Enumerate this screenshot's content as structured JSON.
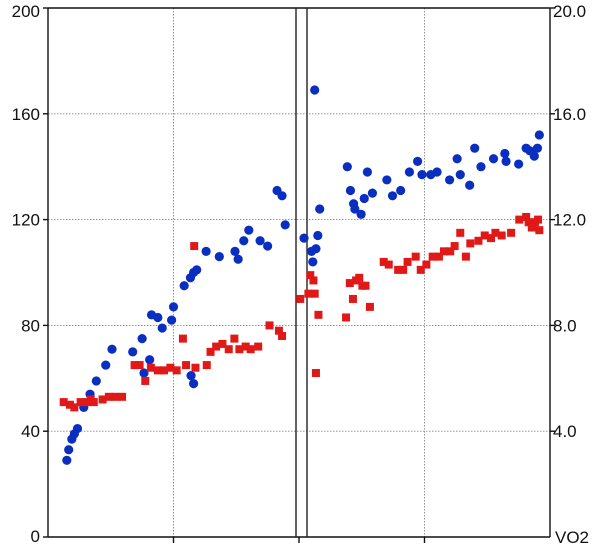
{
  "chart_data": {
    "type": "scatter",
    "title": "",
    "xlabel": "",
    "y_left": {
      "ylim": [
        0,
        200
      ],
      "ticks": [
        "0",
        "40",
        "80",
        "120",
        "160",
        "200"
      ]
    },
    "y_right": {
      "ylim": [
        0,
        20
      ],
      "ticks": [
        "4.0",
        "8.0",
        "12.0",
        "16.0",
        "20.0"
      ],
      "label": "VO2"
    },
    "grid": true,
    "series": [
      {
        "axis": "left",
        "marker": "circle",
        "color": "#0a2fc0",
        "points": [
          [
            3,
            29
          ],
          [
            3.3,
            33
          ],
          [
            3.8,
            37
          ],
          [
            4.2,
            39
          ],
          [
            4.7,
            41
          ],
          [
            5.7,
            49
          ],
          [
            6.7,
            54
          ],
          [
            7.7,
            59
          ],
          [
            9.2,
            65
          ],
          [
            10.2,
            71
          ],
          [
            13.5,
            70
          ],
          [
            15,
            75
          ],
          [
            15.3,
            62
          ],
          [
            16.2,
            67
          ],
          [
            16.5,
            84
          ],
          [
            17.5,
            83
          ],
          [
            18.2,
            79
          ],
          [
            19.7,
            82
          ],
          [
            20,
            87
          ],
          [
            21.7,
            95
          ],
          [
            22.8,
            61
          ],
          [
            23.2,
            58
          ],
          [
            22.7,
            98
          ],
          [
            23.2,
            100
          ],
          [
            23.7,
            101
          ],
          [
            25.2,
            108
          ],
          [
            27.3,
            106
          ],
          [
            29.8,
            108
          ],
          [
            30.3,
            105
          ],
          [
            31.2,
            112
          ],
          [
            32,
            116
          ],
          [
            33.8,
            112
          ],
          [
            35,
            110
          ],
          [
            36.5,
            131
          ],
          [
            37.3,
            129
          ],
          [
            37.8,
            118
          ],
          [
            40.8,
            113
          ],
          [
            42,
            108
          ],
          [
            42.2,
            104
          ],
          [
            42.7,
            109
          ],
          [
            43,
            114
          ],
          [
            42.5,
            169
          ],
          [
            43.3,
            124
          ],
          [
            47.7,
            140
          ],
          [
            48.2,
            131
          ],
          [
            48.7,
            126
          ],
          [
            48.9,
            124
          ],
          [
            49.9,
            122
          ],
          [
            50.4,
            128
          ],
          [
            50.9,
            138
          ],
          [
            51.7,
            130
          ],
          [
            54,
            135
          ],
          [
            54.9,
            129
          ],
          [
            56.2,
            131
          ],
          [
            57.6,
            138
          ],
          [
            58.9,
            142
          ],
          [
            59.6,
            137
          ],
          [
            61,
            137
          ],
          [
            62,
            138
          ],
          [
            64,
            135
          ],
          [
            65.2,
            143
          ],
          [
            65.7,
            137
          ],
          [
            67.2,
            133
          ],
          [
            68,
            147
          ],
          [
            69,
            140
          ],
          [
            71,
            143
          ],
          [
            72.8,
            145
          ],
          [
            73,
            142
          ],
          [
            75,
            141
          ],
          [
            76.2,
            147
          ],
          [
            76.8,
            146
          ],
          [
            77.5,
            144
          ],
          [
            78,
            147
          ],
          [
            78.3,
            152
          ]
        ]
      },
      {
        "axis": "right",
        "marker": "square",
        "color": "#e01818",
        "points": [
          [
            2.5,
            5.1
          ],
          [
            3.5,
            5.0
          ],
          [
            4.2,
            4.9
          ],
          [
            5.2,
            5.1
          ],
          [
            6.2,
            5.1
          ],
          [
            6.8,
            5.2
          ],
          [
            7.3,
            5.1
          ],
          [
            8.7,
            5.2
          ],
          [
            9.7,
            5.3
          ],
          [
            10.7,
            5.3
          ],
          [
            11.8,
            5.3
          ],
          [
            13.8,
            6.5
          ],
          [
            14.6,
            6.5
          ],
          [
            15.5,
            5.9
          ],
          [
            16.4,
            6.4
          ],
          [
            17.5,
            6.3
          ],
          [
            18.5,
            6.3
          ],
          [
            19.5,
            6.4
          ],
          [
            20.5,
            6.3
          ],
          [
            21.5,
            7.5
          ],
          [
            23.3,
            11.0
          ],
          [
            22,
            6.5
          ],
          [
            23.5,
            6.4
          ],
          [
            25.3,
            6.5
          ],
          [
            25.9,
            7.0
          ],
          [
            26.8,
            7.2
          ],
          [
            27.8,
            7.3
          ],
          [
            28.8,
            7.1
          ],
          [
            29.7,
            7.5
          ],
          [
            30.5,
            7.1
          ],
          [
            31.5,
            7.2
          ],
          [
            32.3,
            7.1
          ],
          [
            33.5,
            7.2
          ],
          [
            35.3,
            8.0
          ],
          [
            36.8,
            7.8
          ],
          [
            37.3,
            7.6
          ],
          [
            40.2,
            9.0
          ],
          [
            41.5,
            9.2
          ],
          [
            41.8,
            9.9
          ],
          [
            42.3,
            9.7
          ],
          [
            42.5,
            9.2
          ],
          [
            42.7,
            6.2
          ],
          [
            43.1,
            8.4
          ],
          [
            47.5,
            8.3
          ],
          [
            48.1,
            9.6
          ],
          [
            48.6,
            9.0
          ],
          [
            49.1,
            9.7
          ],
          [
            49.6,
            9.8
          ],
          [
            50.1,
            9.5
          ],
          [
            50.6,
            9.5
          ],
          [
            51.3,
            8.7
          ],
          [
            53.5,
            10.4
          ],
          [
            54.3,
            10.3
          ],
          [
            55.8,
            10.1
          ],
          [
            56.6,
            10.1
          ],
          [
            57.3,
            10.4
          ],
          [
            58.6,
            10.6
          ],
          [
            59.4,
            10.1
          ],
          [
            60.3,
            10.3
          ],
          [
            61.3,
            10.6
          ],
          [
            62.3,
            10.6
          ],
          [
            63.1,
            10.8
          ],
          [
            64.1,
            10.8
          ],
          [
            64.8,
            11.0
          ],
          [
            65.7,
            11.5
          ],
          [
            66.6,
            10.6
          ],
          [
            67.3,
            11.1
          ],
          [
            68.6,
            11.2
          ],
          [
            69.6,
            11.4
          ],
          [
            70.6,
            11.3
          ],
          [
            71.3,
            11.5
          ],
          [
            72.3,
            11.4
          ],
          [
            73.8,
            11.5
          ],
          [
            75.1,
            12.0
          ],
          [
            76.2,
            12.1
          ],
          [
            76.6,
            11.9
          ],
          [
            77.1,
            11.7
          ],
          [
            77.6,
            11.9
          ],
          [
            78.1,
            12.0
          ],
          [
            78.3,
            11.6
          ]
        ]
      }
    ]
  }
}
